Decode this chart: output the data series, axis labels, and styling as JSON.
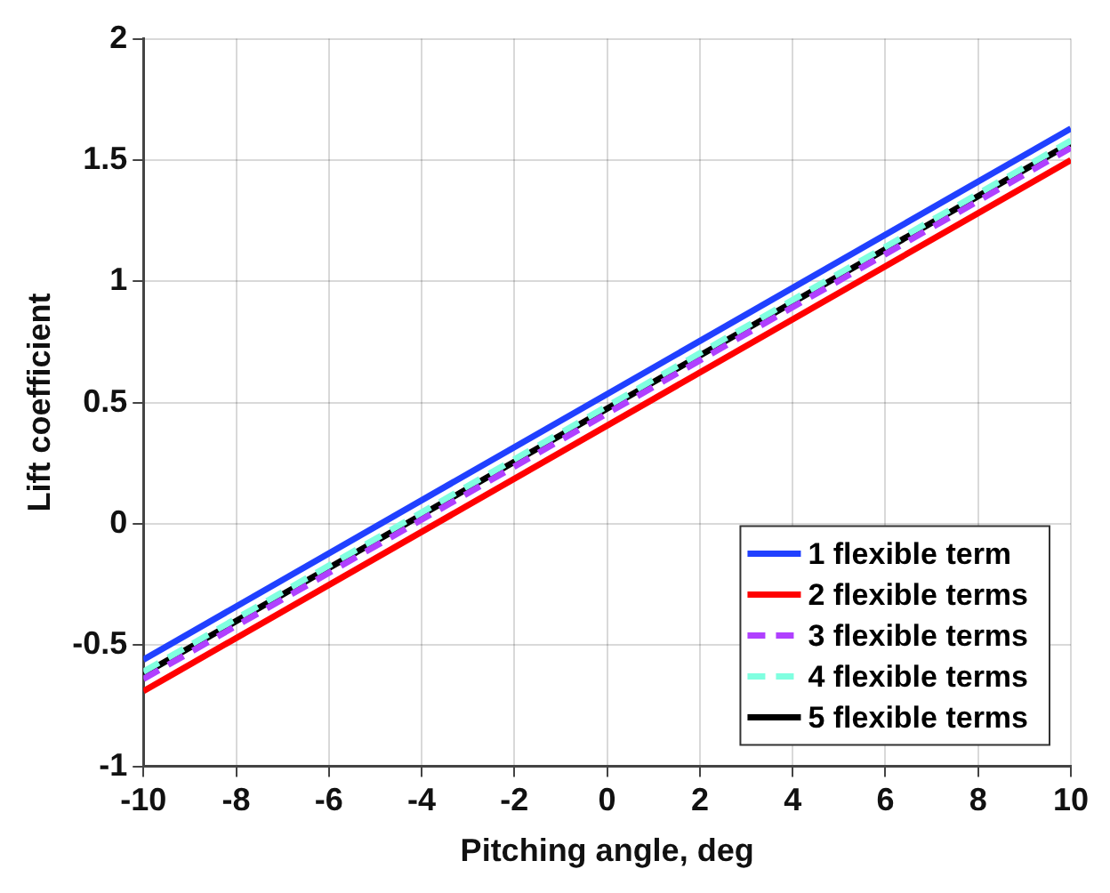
{
  "chart_data": {
    "type": "line",
    "xlabel": "Pitching angle, deg",
    "ylabel": "Lift coefficient",
    "x": [
      -10,
      10
    ],
    "xlim": [
      -10,
      10
    ],
    "xticks": [
      -10,
      -8,
      -6,
      -4,
      -2,
      0,
      2,
      4,
      6,
      8,
      10
    ],
    "ylim": [
      -1,
      2
    ],
    "yticks": [
      -1,
      -0.5,
      0,
      0.5,
      1,
      1.5,
      2
    ],
    "grid": true,
    "legend": "bottom right",
    "marker": "none",
    "series": [
      {
        "name": "1 flexible term",
        "color": "#2040ff",
        "values": [
          -0.56,
          1.63
        ],
        "line_style": "solid"
      },
      {
        "name": "2 flexible terms",
        "color": "#ff0000",
        "values": [
          -0.69,
          1.5
        ],
        "line_style": "solid"
      },
      {
        "name": "3 flexible terms",
        "color": "#b040ff",
        "values": [
          -0.64,
          1.55
        ],
        "line_style": "dashed"
      },
      {
        "name": "4 flexible terms",
        "color": "#80ffe0",
        "values": [
          -0.61,
          1.58
        ],
        "line_style": "dashed"
      },
      {
        "name": "5 flexible terms",
        "color": "#000000",
        "values": [
          -0.62,
          1.57
        ],
        "line_style": "solid"
      }
    ]
  }
}
